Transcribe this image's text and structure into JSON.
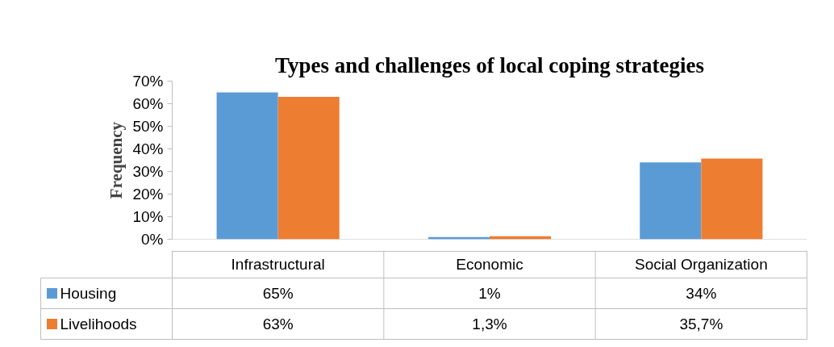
{
  "chart_data": {
    "type": "bar",
    "title": "Types and challenges of local coping strategies",
    "ylabel": "Frequency",
    "categories": [
      "Infrastructural",
      "Economic",
      "Social Organization"
    ],
    "series": [
      {
        "name": "Housing",
        "color": "#5b9bd5",
        "values": [
          65,
          1,
          34
        ],
        "value_labels": [
          "65%",
          "1%",
          "34%"
        ]
      },
      {
        "name": "Livelihoods",
        "color": "#ed7d31",
        "values": [
          63,
          1.3,
          35.7
        ],
        "value_labels": [
          "63%",
          "1,3%",
          "35,7%"
        ]
      }
    ],
    "ylim": [
      0,
      70
    ],
    "yticks": [
      {
        "value": 0,
        "label": "0%"
      },
      {
        "value": 10,
        "label": "10%"
      },
      {
        "value": 20,
        "label": "20%"
      },
      {
        "value": 30,
        "label": "30%"
      },
      {
        "value": 40,
        "label": "40%"
      },
      {
        "value": 50,
        "label": "50%"
      },
      {
        "value": 60,
        "label": "60%"
      },
      {
        "value": 70,
        "label": "70%"
      }
    ],
    "grid": false,
    "legend": "bottom left"
  }
}
